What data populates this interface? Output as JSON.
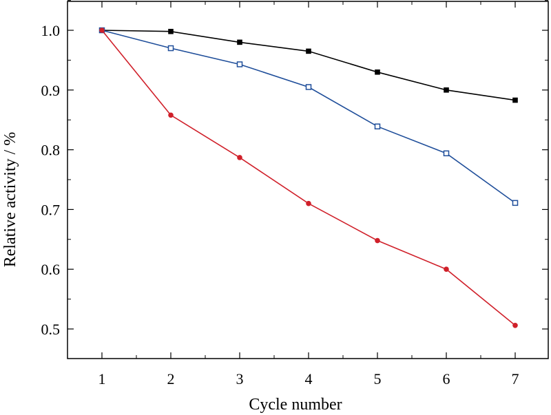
{
  "chart_data": {
    "type": "line",
    "xlabel": "Cycle number",
    "ylabel": "Relative activity / %",
    "xlim": [
      0.5,
      7.5
    ],
    "ylim": [
      0.44,
      1.05
    ],
    "x_ticks": [
      1,
      2,
      3,
      4,
      5,
      6,
      7
    ],
    "x_tick_labels": [
      "1",
      "2",
      "3",
      "4",
      "5",
      "6",
      "7"
    ],
    "y_ticks": [
      0.5,
      0.6,
      0.7,
      0.8,
      0.9,
      1.0
    ],
    "y_tick_labels": [
      "0.5",
      "0.6",
      "0.7",
      "0.8",
      "0.9",
      "1.0"
    ],
    "grid": false,
    "series": [
      {
        "color": "#000000",
        "marker": "filled-square",
        "x": [
          1,
          2,
          3,
          4,
          5,
          6,
          7
        ],
        "values": [
          1.0,
          0.998,
          0.98,
          0.965,
          0.93,
          0.9,
          0.883
        ]
      },
      {
        "color": "#1f4e9a",
        "marker": "open-square",
        "x": [
          1,
          2,
          3,
          4,
          5,
          6,
          7
        ],
        "values": [
          1.0,
          0.97,
          0.943,
          0.905,
          0.839,
          0.794,
          0.711
        ]
      },
      {
        "color": "#d0202a",
        "marker": "filled-circle",
        "x": [
          1,
          2,
          3,
          4,
          5,
          6,
          7
        ],
        "values": [
          1.0,
          0.858,
          0.787,
          0.71,
          0.648,
          0.6,
          0.506
        ]
      }
    ]
  }
}
